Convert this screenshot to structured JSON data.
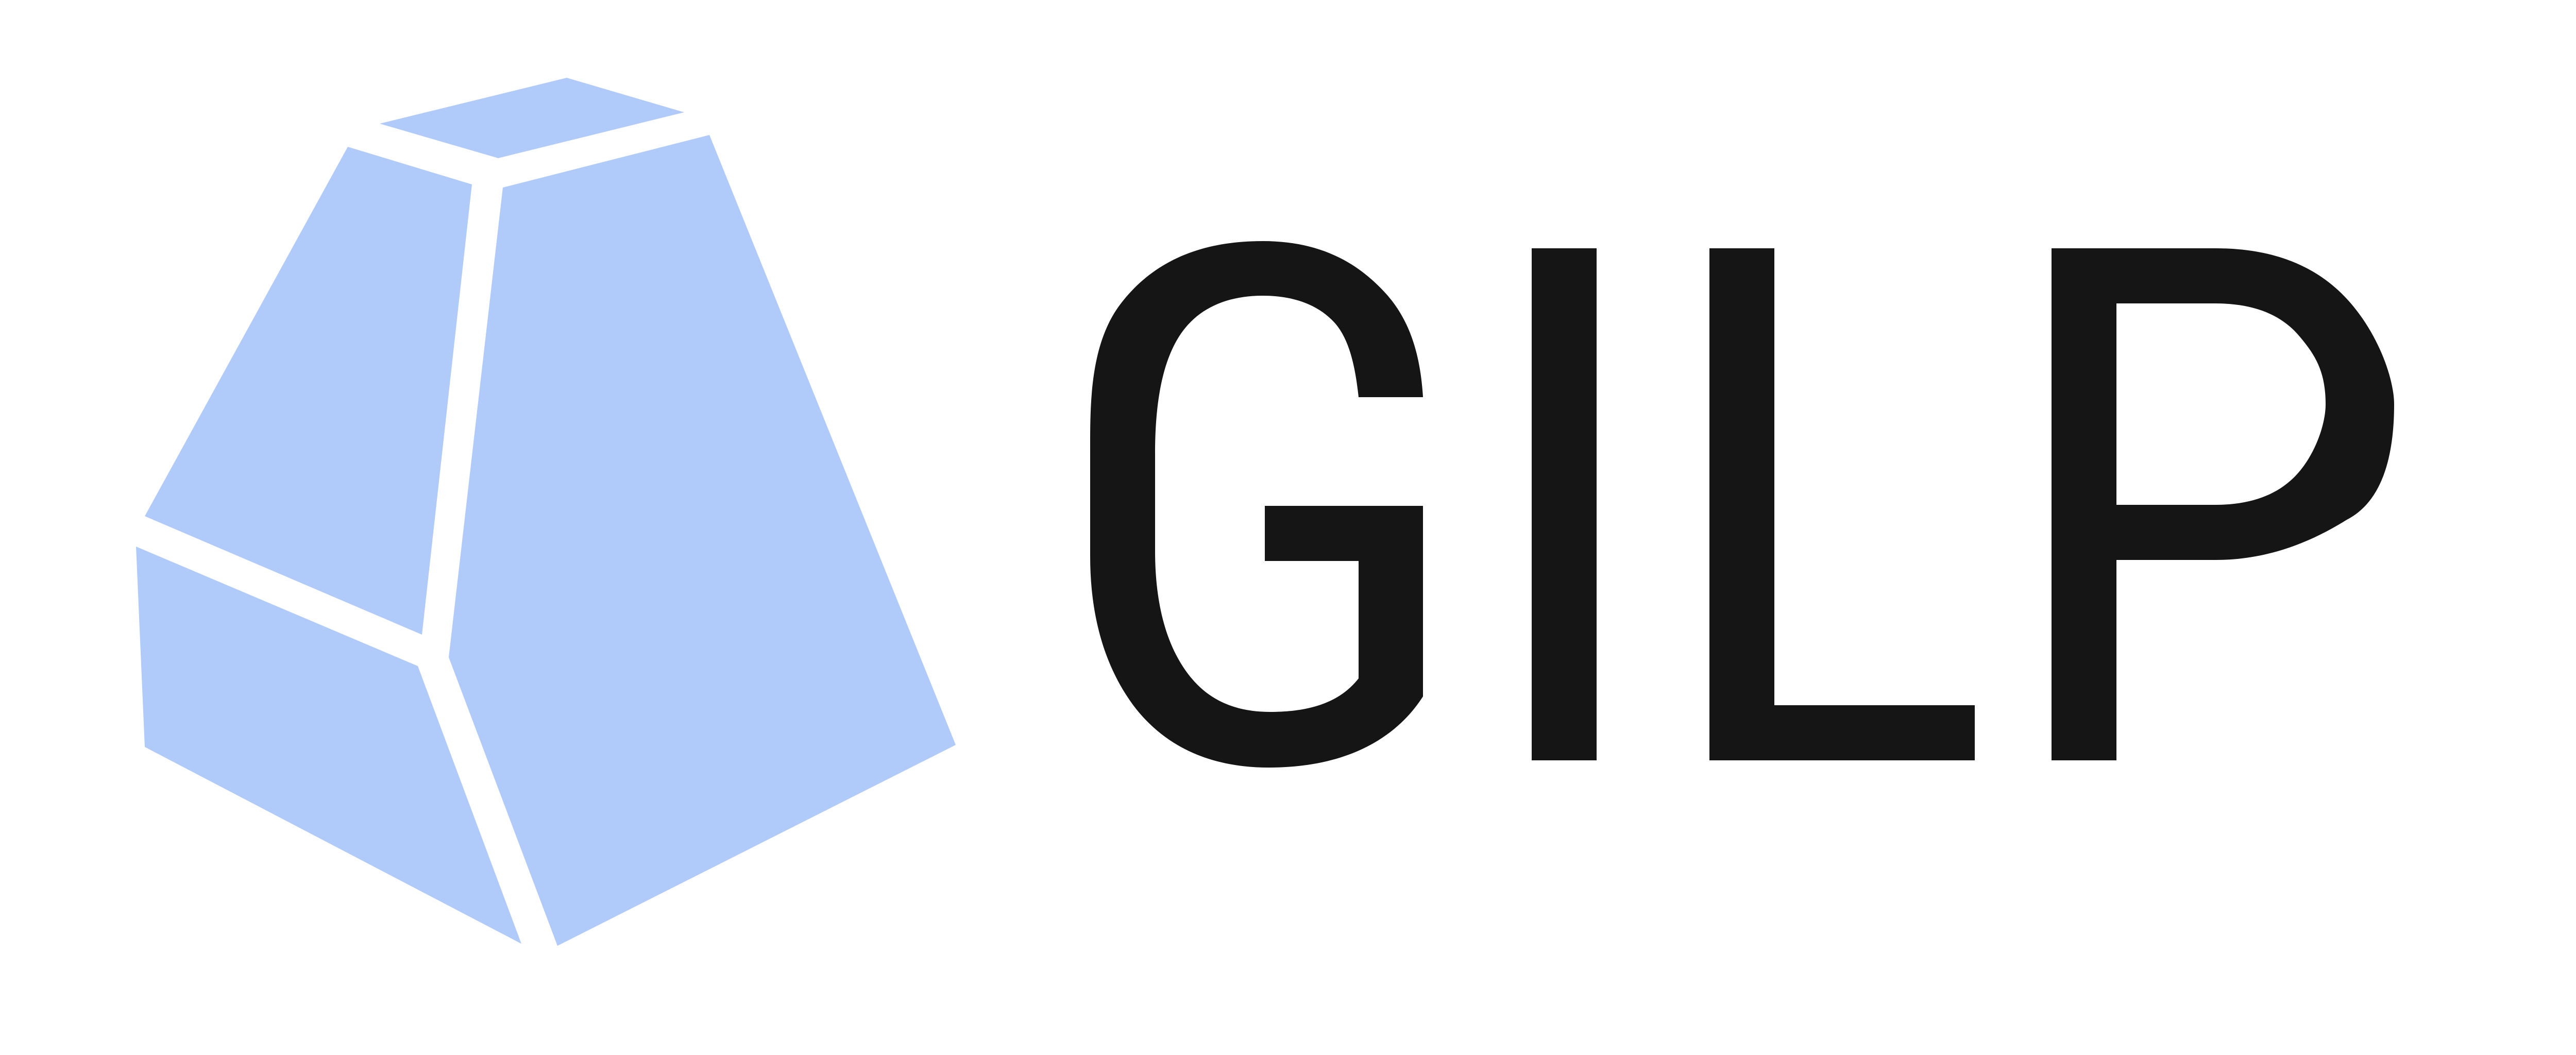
{
  "logo": {
    "wordmark": "GILP",
    "mark_icon": "faceted-gem-icon",
    "colors": {
      "mark": "#b0cafa",
      "wordmark": "#151515",
      "background": "#ffffff"
    }
  }
}
